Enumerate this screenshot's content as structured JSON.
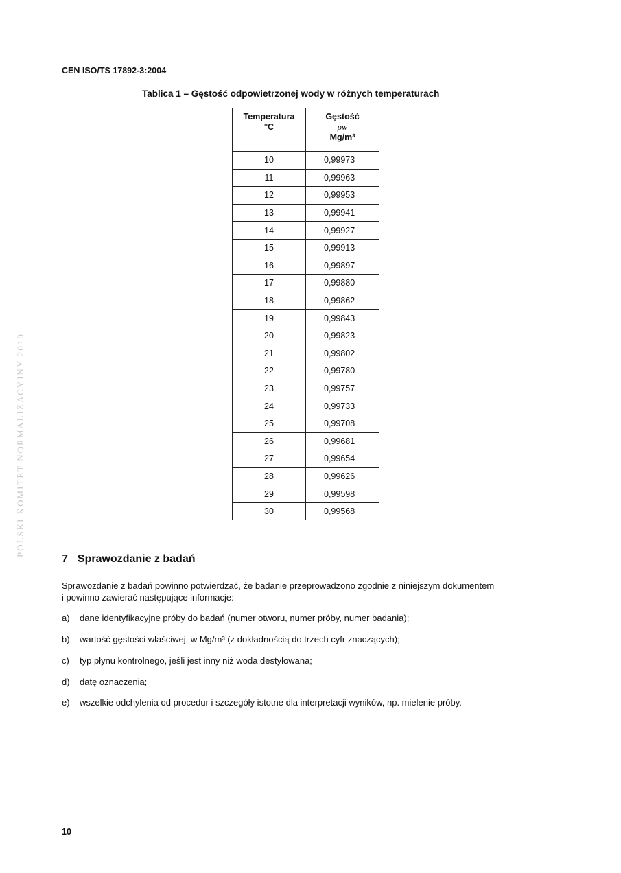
{
  "header": {
    "standard": "CEN ISO/TS 17892-3:2004"
  },
  "table": {
    "caption": "Tablica 1 – Gęstość odpowietrzonej wody w różnych temperaturach",
    "col1": {
      "title": "Temperatura",
      "unit": "°C"
    },
    "col2": {
      "title": "Gęstość",
      "symbol": "ρw",
      "unit": "Mg/m³"
    },
    "rows": [
      [
        "10",
        "0,99973"
      ],
      [
        "11",
        "0,99963"
      ],
      [
        "12",
        "0,99953"
      ],
      [
        "13",
        "0,99941"
      ],
      [
        "14",
        "0,99927"
      ],
      [
        "15",
        "0,99913"
      ],
      [
        "16",
        "0,99897"
      ],
      [
        "17",
        "0,99880"
      ],
      [
        "18",
        "0,99862"
      ],
      [
        "19",
        "0,99843"
      ],
      [
        "20",
        "0,99823"
      ],
      [
        "21",
        "0,99802"
      ],
      [
        "22",
        "0,99780"
      ],
      [
        "23",
        "0,99757"
      ],
      [
        "24",
        "0,99733"
      ],
      [
        "25",
        "0,99708"
      ],
      [
        "26",
        "0,99681"
      ],
      [
        "27",
        "0,99654"
      ],
      [
        "28",
        "0,99626"
      ],
      [
        "29",
        "0,99598"
      ],
      [
        "30",
        "0,99568"
      ]
    ]
  },
  "section": {
    "number": "7",
    "title": "Sprawozdanie z badań"
  },
  "intro": [
    "Sprawozdanie z badań powinno potwierdzać, że badanie przeprowadzono zgodnie z niniejszym dokumentem",
    "i powinno zawierać następujące informacje:"
  ],
  "items": [
    {
      "marker": "a)",
      "text": "dane identyfikacyjne próby do badań (numer otworu, numer próby, numer badania);"
    },
    {
      "marker": "b)",
      "text": "wartość gęstości właściwej, w Mg/m³ (z dokładnością do trzech cyfr znaczących);"
    },
    {
      "marker": "c)",
      "text": "typ płynu kontrolnego, jeśli jest inny niż woda destylowana;"
    },
    {
      "marker": "d)",
      "text": "datę oznaczenia;"
    },
    {
      "marker": "e)",
      "text": "wszelkie odchylenia od procedur i szczegóły istotne dla interpretacji wyników, np. mielenie próby."
    }
  ],
  "footer": {
    "page_number": "10"
  },
  "watermark": "POLSKI KOMITET NORMALIZACYJNY 2010"
}
